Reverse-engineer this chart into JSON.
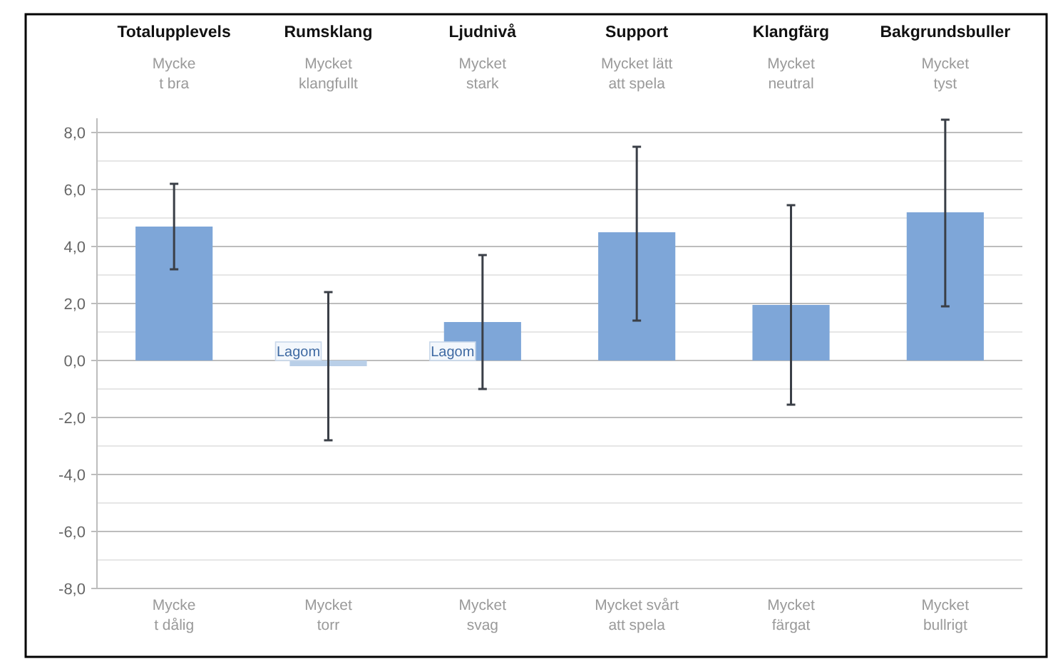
{
  "chart_data": {
    "type": "bar",
    "categories": [
      "Totalupplevels",
      "Rumsklang",
      "Ljudnivå",
      "Support",
      "Klangfärg",
      "Bakgrundsbuller"
    ],
    "values": [
      4.7,
      -0.2,
      1.35,
      4.5,
      1.95,
      5.2
    ],
    "colors": [
      "#7ea6d8",
      "#b9cfe8",
      "#7ea6d8",
      "#7ea6d8",
      "#7ea6d8",
      "#7ea6d8"
    ],
    "errors": [
      [
        3.2,
        6.2
      ],
      [
        -2.8,
        2.4
      ],
      [
        -1.0,
        3.7
      ],
      [
        1.4,
        7.5
      ],
      [
        -1.55,
        5.45
      ],
      [
        1.9,
        8.45
      ]
    ],
    "ylim": [
      -8,
      8.5
    ],
    "yticks": [
      {
        "value": -8,
        "label": "-8,0"
      },
      {
        "value": -7,
        "label": null
      },
      {
        "value": -6,
        "label": "-6,0"
      },
      {
        "value": -5,
        "label": null
      },
      {
        "value": -4,
        "label": "-4,0"
      },
      {
        "value": -3,
        "label": null
      },
      {
        "value": -2,
        "label": "-2,0"
      },
      {
        "value": -1,
        "label": null
      },
      {
        "value": 0,
        "label": "0,0"
      },
      {
        "value": 1,
        "label": null
      },
      {
        "value": 2,
        "label": "2,0"
      },
      {
        "value": 3,
        "label": null
      },
      {
        "value": 4,
        "label": "4,0"
      },
      {
        "value": 5,
        "label": null
      },
      {
        "value": 6,
        "label": "6,0"
      },
      {
        "value": 7,
        "label": null
      },
      {
        "value": 8,
        "label": "8,0"
      }
    ],
    "grid": "y",
    "annotations": [
      "Mycke\nt bra",
      "Mycket\nklangfullt",
      "Mycket\nstark",
      "Mycket lätt\natt spela",
      "Mycket\nneutral",
      "Mycket\ntyst",
      "Mycke\nt dålig",
      "Mycket\ntorr",
      "Mycket\nsvag",
      "Mycket svårt\natt spela",
      "Mycket\nfärgat",
      "Mycket\nbullrigt",
      {
        "text": "Lagom",
        "x": "Rumsklang",
        "y": 0
      },
      {
        "text": "Lagom",
        "x": "Ljudnivå",
        "y": 0
      }
    ]
  }
}
